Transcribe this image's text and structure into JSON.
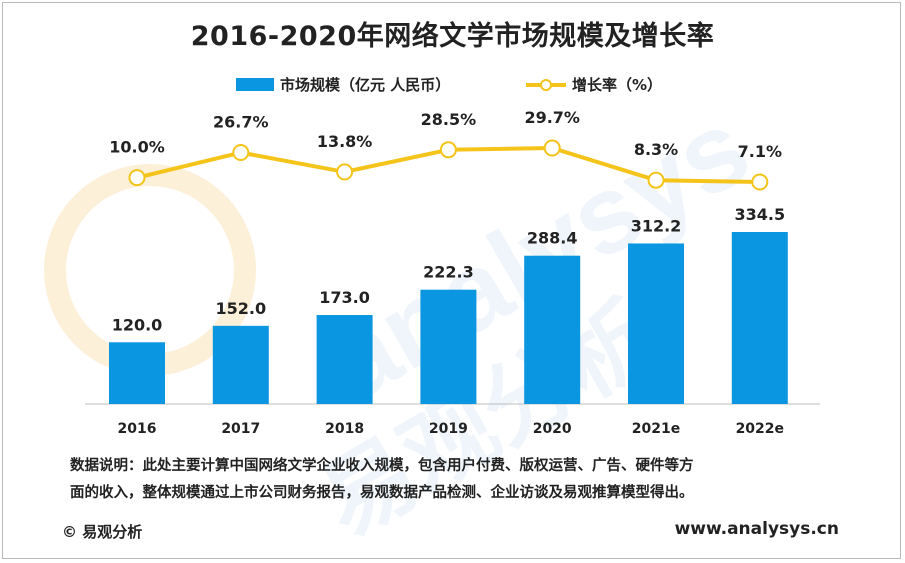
{
  "title": "2016-2020年网络文学市场规模及增长率",
  "legend": {
    "bar_label": "市场规模（亿元 人民币）",
    "line_label": "增长率（%）"
  },
  "colors": {
    "bar": "#0a96e0",
    "line": "#f5c41a",
    "axis": "#bdbdbd",
    "watermark": "#dcebf6"
  },
  "chart_data": {
    "type": "bar",
    "categories": [
      "2016",
      "2017",
      "2018",
      "2019",
      "2020",
      "2021e",
      "2022e"
    ],
    "series": [
      {
        "name": "市场规模（亿元 人民币）",
        "type": "bar",
        "values": [
          120.0,
          152.0,
          173.0,
          222.3,
          288.4,
          312.2,
          334.5
        ],
        "labels": [
          "120.0",
          "152.0",
          "173.0",
          "222.3",
          "288.4",
          "312.2",
          "334.5"
        ]
      },
      {
        "name": "增长率（%）",
        "type": "line",
        "values": [
          10.0,
          26.7,
          13.8,
          28.5,
          29.7,
          8.3,
          7.1
        ],
        "labels": [
          "10.0%",
          "26.7%",
          "13.8%",
          "28.5%",
          "29.7%",
          "8.3%",
          "7.1%"
        ]
      }
    ],
    "legend_position": "top-center",
    "grid": false
  },
  "note": {
    "line1": "数据说明：此处主要计算中国网络文学企业收入规模，包含用户付费、版权运营、广告、硬件等方",
    "line2": "面的收入，整体规模通过上市公司财务报告，易观数据产品检测、企业访谈及易观推算模型得出。"
  },
  "footer": {
    "left": "© 易观分析",
    "right": "www.analysys.cn"
  },
  "watermark": {
    "latin": "analysys",
    "cjk": "易观分析"
  }
}
